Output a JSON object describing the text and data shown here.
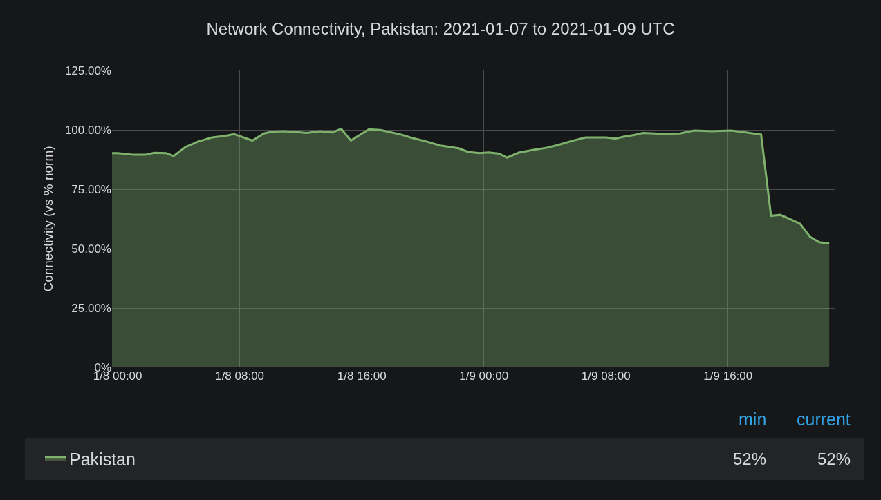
{
  "chart_data": {
    "type": "area",
    "title": "Network Connectivity, Pakistan: 2021-01-07 to 2021-01-09 UTC",
    "ylabel": "Connectivity (vs % norm)",
    "x": [
      "2021-01-07T23:38",
      "2021-01-08T00:00",
      "2021-01-08T01:04",
      "2021-01-08T01:48",
      "2021-01-08T02:24",
      "2021-01-08T03:10",
      "2021-01-08T03:40",
      "2021-01-08T04:27",
      "2021-01-08T05:17",
      "2021-01-08T06:11",
      "2021-01-08T06:57",
      "2021-01-08T07:38",
      "2021-01-08T08:50",
      "2021-01-08T09:35",
      "2021-01-08T10:07",
      "2021-01-08T10:52",
      "2021-01-08T11:38",
      "2021-01-08T12:23",
      "2021-01-08T13:17",
      "2021-01-08T14:03",
      "2021-01-08T14:39",
      "2021-01-08T15:17",
      "2021-01-08T16:28",
      "2021-01-08T17:13",
      "2021-01-08T18:35",
      "2021-01-08T19:11",
      "2021-01-08T20:14",
      "2021-01-08T21:09",
      "2021-01-08T22:21",
      "2021-01-08T22:58",
      "2021-01-08T23:43",
      "2021-01-09T00:19",
      "2021-01-09T01:00",
      "2021-01-09T01:31",
      "2021-01-09T02:17",
      "2021-01-09T03:11",
      "2021-01-09T04:05",
      "2021-01-09T04:51",
      "2021-01-09T05:45",
      "2021-01-09T06:40",
      "2021-01-09T08:01",
      "2021-01-09T08:37",
      "2021-01-09T09:05",
      "2021-01-09T09:50",
      "2021-01-09T10:26",
      "2021-01-09T11:38",
      "2021-01-09T12:51",
      "2021-01-09T13:46",
      "2021-01-09T14:58",
      "2021-01-09T16:11",
      "2021-01-09T16:56",
      "2021-01-09T18:10",
      "2021-01-09T18:49",
      "2021-01-09T19:25",
      "2021-01-09T20:06",
      "2021-01-09T20:43",
      "2021-01-09T21:23",
      "2021-01-09T21:59",
      "2021-01-09T22:38"
    ],
    "series": [
      {
        "name": "Pakistan",
        "color": "#7eb26d",
        "values": [
          90.2,
          90.2,
          89.5,
          89.5,
          90.3,
          90.2,
          89.0,
          92.8,
          95.1,
          96.8,
          97.4,
          98.2,
          95.5,
          98.5,
          99.2,
          99.4,
          99.1,
          98.7,
          99.4,
          98.9,
          100.4,
          95.5,
          100.2,
          99.9,
          98.0,
          96.8,
          95.1,
          93.4,
          92.2,
          90.7,
          90.2,
          90.5,
          90.0,
          88.3,
          90.4,
          91.5,
          92.4,
          93.6,
          95.3,
          96.8,
          96.8,
          96.3,
          97.0,
          97.8,
          98.7,
          98.3,
          98.5,
          99.7,
          99.4,
          99.7,
          99.1,
          98.0,
          63.8,
          64.2,
          62.3,
          60.5,
          54.9,
          52.7,
          52.2
        ]
      }
    ],
    "xlim": [
      "2021-01-07T23:38",
      "2021-01-09T23:02"
    ],
    "xticks": [
      {
        "value": "2021-01-08T00:00",
        "label": "1/8 00:00"
      },
      {
        "value": "2021-01-08T08:00",
        "label": "1/8 08:00"
      },
      {
        "value": "2021-01-08T16:00",
        "label": "1/8 16:00"
      },
      {
        "value": "2021-01-09T00:00",
        "label": "1/9 00:00"
      },
      {
        "value": "2021-01-09T08:00",
        "label": "1/9 08:00"
      },
      {
        "value": "2021-01-09T16:00",
        "label": "1/9 16:00"
      }
    ],
    "ylim": [
      0,
      125
    ],
    "yticks": [
      {
        "value": 0,
        "label": "0%"
      },
      {
        "value": 25,
        "label": "25.00%"
      },
      {
        "value": 50,
        "label": "50.00%"
      },
      {
        "value": 75,
        "label": "75.00%"
      },
      {
        "value": 100,
        "label": "100.00%"
      },
      {
        "value": 125,
        "label": "125.00%"
      }
    ],
    "grid": true,
    "legend": "bottom",
    "annotations": [
      "min",
      "current",
      "52%",
      "52%"
    ]
  }
}
